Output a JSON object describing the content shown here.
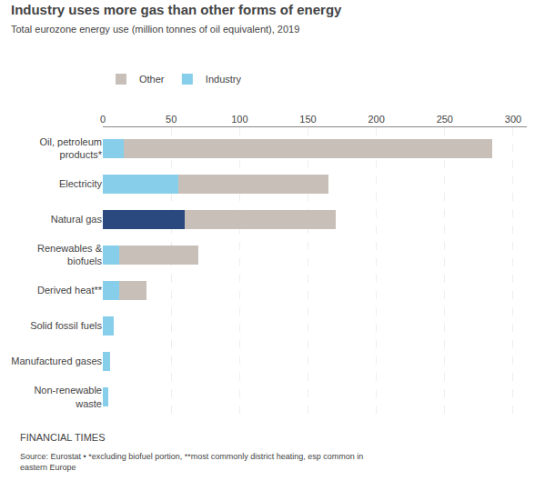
{
  "chart_data": {
    "type": "bar",
    "orientation": "horizontal",
    "stacked": true,
    "title": "Industry uses more gas than other forms of energy",
    "subtitle": "Total eurozone energy use (million tonnes of oil equivalent), 2019",
    "categories": [
      "Non-renewable\nwaste",
      "Manufactured gases",
      "Solid fossil fuels",
      "Derived heat**",
      "Renewables &\nbiofuels",
      "Natural gas",
      "Electricity",
      "Oil, petroleum\nproducts*"
    ],
    "series": [
      {
        "name": "Industry",
        "colors": [
          "#87ceeb",
          "#87ceeb",
          "#87ceeb",
          "#87ceeb",
          "#87ceeb",
          "#2a4a7f",
          "#87ceeb",
          "#87ceeb"
        ],
        "values": [
          4,
          5,
          8,
          12,
          12,
          60,
          55,
          15
        ]
      },
      {
        "name": "Other",
        "color": "#c8c0b8",
        "values": [
          0,
          0,
          0,
          20,
          58,
          110,
          110,
          270
        ]
      }
    ],
    "xlim": [
      0,
      310
    ],
    "xticks": [
      0,
      50,
      100,
      150,
      200,
      250,
      300
    ],
    "grid": true,
    "legend": "top",
    "annotations": [
      "FINANCIAL TIMES",
      "Source: Eurostat • *excluding biofuel portion, **most commonly district heating, esp common in\neastern Europe"
    ]
  }
}
